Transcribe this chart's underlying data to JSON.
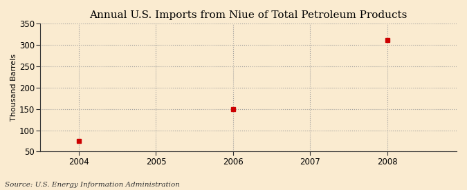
{
  "title": "Annual U.S. Imports from Niue of Total Petroleum Products",
  "ylabel": "Thousand Barrels",
  "source_text": "Source: U.S. Energy Information Administration",
  "x_data": [
    2004,
    2006,
    2008
  ],
  "y_data": [
    75,
    150,
    311
  ],
  "xlim": [
    2003.5,
    2008.9
  ],
  "ylim": [
    50,
    350
  ],
  "yticks": [
    50,
    100,
    150,
    200,
    250,
    300,
    350
  ],
  "xticks": [
    2004,
    2005,
    2006,
    2007,
    2008
  ],
  "marker_color": "#cc0000",
  "marker_size": 4,
  "background_color": "#faebd0",
  "plot_bg_color": "#faebd0",
  "grid_color": "#999999",
  "title_fontsize": 11,
  "label_fontsize": 8,
  "tick_fontsize": 8.5,
  "source_fontsize": 7.5
}
